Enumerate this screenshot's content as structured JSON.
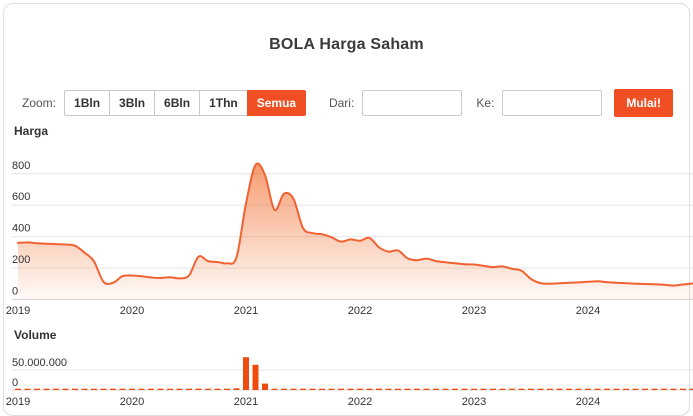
{
  "card": {
    "title": "BOLA Harga Saham"
  },
  "toolbar": {
    "zoom_label": "Zoom:",
    "zoom_buttons": [
      {
        "label": "1Bln",
        "active": false
      },
      {
        "label": "3Bln",
        "active": false
      },
      {
        "label": "6Bln",
        "active": false
      },
      {
        "label": "1Thn",
        "active": false
      },
      {
        "label": "Semua",
        "active": true
      }
    ],
    "dari_label": "Dari:",
    "dari_value": "",
    "ke_label": "Ke:",
    "ke_value": "",
    "mulai_label": "Mulai!"
  },
  "colors": {
    "accent": "#f04e23",
    "price_line": "#f16232",
    "area_fill_base": "#ef5a11",
    "volume_bar": "#ee4c0f",
    "grid": "#e6e6e6",
    "axis_line": "#d4d4d4",
    "tick_text": "#333333",
    "muted_text": "#555555"
  },
  "chart_data": [
    {
      "type": "area",
      "title": "Harga",
      "x_start": "2019-01",
      "x_interval": "month",
      "x_tick_labels": [
        "2019",
        "2020",
        "2021",
        "2022",
        "2023",
        "2024"
      ],
      "y_ticks": [
        0,
        200,
        400,
        600,
        800
      ],
      "y_tick_labels": [
        "0",
        "200",
        "400",
        "600",
        "800"
      ],
      "ylim": [
        0,
        1000
      ],
      "grid": true,
      "values": [
        360,
        363,
        358,
        355,
        352,
        350,
        342,
        298,
        242,
        112,
        106,
        148,
        152,
        147,
        140,
        136,
        141,
        134,
        152,
        272,
        244,
        238,
        230,
        268,
        610,
        856,
        792,
        570,
        674,
        640,
        455,
        422,
        415,
        396,
        368,
        382,
        374,
        392,
        332,
        304,
        312,
        262,
        250,
        260,
        244,
        236,
        230,
        224,
        222,
        214,
        206,
        210,
        195,
        183,
        130,
        104,
        100,
        103,
        106,
        108,
        112,
        115,
        110,
        106,
        103,
        100,
        98,
        96,
        93,
        88,
        95,
        101
      ]
    },
    {
      "type": "bar",
      "title": "Volume",
      "x_start": "2019-01",
      "x_interval": "month",
      "x_tick_labels": [
        "2019",
        "2020",
        "2021",
        "2022",
        "2023",
        "2024"
      ],
      "y_ticks": [
        0,
        50000000
      ],
      "y_tick_labels": [
        "0",
        "50.000.000"
      ],
      "ylim": [
        0,
        90000000
      ],
      "grid": true,
      "values": [
        2000000,
        1200000,
        1600000,
        900000,
        800000,
        2100000,
        1000000,
        900000,
        1200000,
        1800000,
        1000000,
        900000,
        800000,
        700000,
        900000,
        700000,
        600000,
        2800000,
        1200000,
        3600000,
        1100000,
        900000,
        800000,
        4200000,
        82000000,
        63000000,
        16000000,
        2600000,
        2900000,
        1900000,
        1400000,
        1100000,
        1000000,
        900000,
        800000,
        800000,
        1000000,
        1300000,
        3400000,
        1000000,
        900000,
        800000,
        700000,
        800000,
        700000,
        600000,
        600000,
        600000,
        600000,
        500000,
        600000,
        500000,
        500000,
        3200000,
        1400000,
        800000,
        600000,
        500000,
        500000,
        500000,
        600000,
        500000,
        500000,
        600000,
        500000,
        400000,
        500000,
        400000,
        400000,
        500000,
        500000,
        700000
      ]
    }
  ]
}
